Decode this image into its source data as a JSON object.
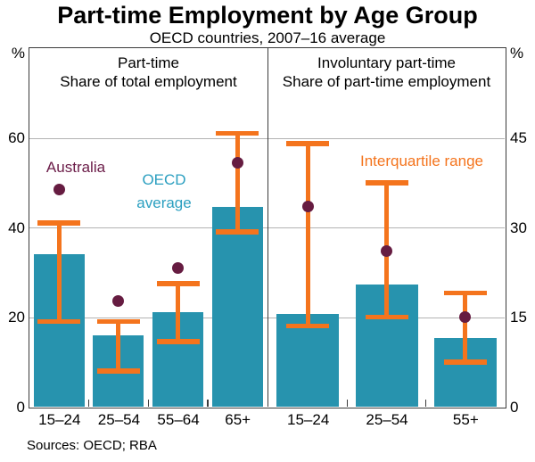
{
  "title": "Part-time Employment by Age Group",
  "subtitle": "OECD countries, 2007–16 average",
  "sources": "Sources: OECD; RBA",
  "annotations": {
    "australia": "Australia",
    "oecd_line1": "OECD",
    "oecd_line2": "average",
    "interquartile": "Interquartile range"
  },
  "colors": {
    "bar_fill": "#2793ae",
    "iqr_orange": "#f4741d",
    "australia_dot": "#661c41",
    "oecd_label": "#2b9fc0",
    "australia_label": "#6b1c48",
    "gridline": "#b3b3b3",
    "frame": "#3b3b3b"
  },
  "chart_data": {
    "type": "bar",
    "title": "Part-time Employment by Age Group",
    "subtitle": "OECD countries, 2007–16 average",
    "grid": true,
    "panels": [
      {
        "header_line1": "Part-time",
        "header_line2": "Share of total employment",
        "axis": "left",
        "categories": [
          "15–24",
          "25–54",
          "55–64",
          "65+"
        ],
        "series": [
          {
            "name": "OECD average",
            "type": "bar",
            "values": [
              34,
              16,
              21,
              44.5
            ]
          },
          {
            "name": "Interquartile range",
            "type": "range",
            "values": [
              [
                19,
                41
              ],
              [
                8,
                19
              ],
              [
                14.5,
                27.5
              ],
              [
                39,
                61
              ]
            ]
          },
          {
            "name": "Australia",
            "type": "dot",
            "values": [
              48.5,
              23.5,
              31,
              54.5
            ]
          }
        ]
      },
      {
        "header_line1": "Involuntary part-time",
        "header_line2": "Share of part-time employment",
        "axis": "right",
        "categories": [
          "15–24",
          "25–54",
          "55+"
        ],
        "series": [
          {
            "name": "OECD average",
            "type": "bar",
            "values": [
              15.5,
              20.5,
              11.5
            ]
          },
          {
            "name": "Interquartile range",
            "type": "range",
            "values": [
              [
                13.5,
                44
              ],
              [
                15,
                37.5
              ],
              [
                7.5,
                19
              ]
            ]
          },
          {
            "name": "Australia",
            "type": "dot",
            "values": [
              33.5,
              26,
              15
            ]
          }
        ]
      }
    ],
    "axes": {
      "left": {
        "unit": "%",
        "grid_step": 20,
        "range": [
          0,
          80
        ],
        "ticks": [
          {
            "label": "60",
            "value": 60
          },
          {
            "label": "40",
            "value": 40
          },
          {
            "label": "20",
            "value": 20
          },
          {
            "label": "0",
            "value": 0
          }
        ]
      },
      "right": {
        "unit": "%",
        "grid_step": 15,
        "range": [
          0,
          60
        ],
        "ticks": [
          {
            "label": "45",
            "value": 45
          },
          {
            "label": "30",
            "value": 30
          },
          {
            "label": "15",
            "value": 15
          },
          {
            "label": "0",
            "value": 0
          }
        ]
      }
    }
  }
}
